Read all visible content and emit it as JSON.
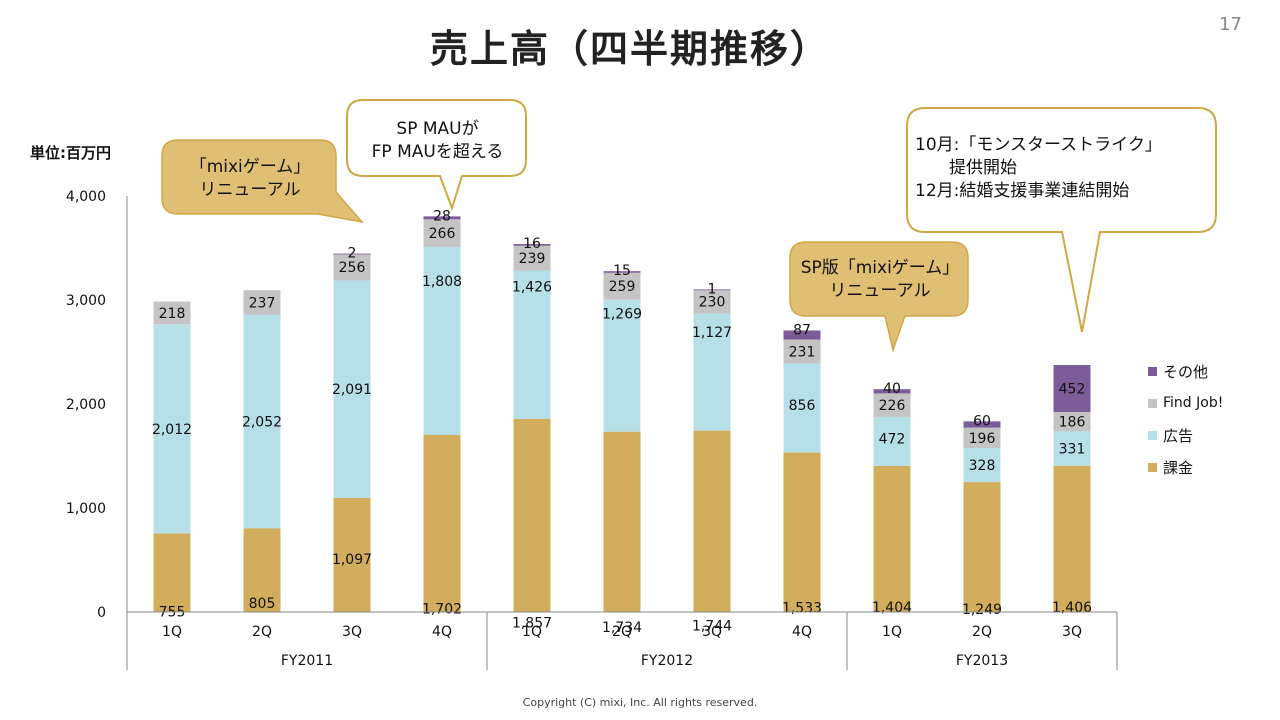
{
  "title": "売上高（四半期推移）",
  "page_number": "17",
  "unit_label": "単位:百万円",
  "copyright": "Copyright (C) mixi, Inc. All rights reserved.",
  "colors": {
    "kakin": "#d2ad5b",
    "koukoku": "#b7dfe8",
    "findjob": "#c4c4c4",
    "other": "#7b5c99",
    "callout_fill": "#dfbf73",
    "callout_border": "#cfa845",
    "axis": "#888888"
  },
  "callouts": [
    {
      "text": "「mixiゲーム」\nリニューアル"
    },
    {
      "text": "SP MAUが\nFP MAUを超える"
    },
    {
      "text": "SP版「mixiゲーム」\nリニューアル"
    },
    {
      "text": "10月:「モンスターストライク」\n　　提供開始\n12月:結婚支援事業連結開始"
    }
  ],
  "chart_data": {
    "type": "bar",
    "stacked": true,
    "title": "売上高（四半期推移）",
    "ylabel": "単位:百万円",
    "ylim": [
      0,
      4000
    ],
    "yticks": [
      "0",
      "1,000",
      "2,000",
      "3,000",
      "4,000"
    ],
    "categories": [
      "1Q",
      "2Q",
      "3Q",
      "4Q",
      "1Q",
      "2Q",
      "3Q",
      "4Q",
      "1Q",
      "2Q",
      "3Q"
    ],
    "groups": [
      {
        "label": "FY2011",
        "count": 4
      },
      {
        "label": "FY2012",
        "count": 4
      },
      {
        "label": "FY2013",
        "count": 3
      }
    ],
    "legend_position": "right",
    "series": [
      {
        "name": "課金",
        "key": "kakin",
        "values": [
          755,
          805,
          1097,
          1702,
          1857,
          1734,
          1744,
          1533,
          1404,
          1249,
          1406
        ],
        "labels": [
          "755",
          "805",
          "1,097",
          "1,702",
          "1,857",
          "1,734",
          "1,744",
          "1,533",
          "1,404",
          "1,249",
          "1,406"
        ]
      },
      {
        "name": "広告",
        "key": "koukoku",
        "values": [
          2012,
          2052,
          2091,
          1808,
          1426,
          1269,
          1127,
          856,
          472,
          328,
          331
        ],
        "labels": [
          "2,012",
          "2,052",
          "2,091",
          "1,808",
          "1,426",
          "1,269",
          "1,127",
          "856",
          "472",
          "328",
          "331"
        ]
      },
      {
        "name": "Find Job!",
        "key": "findjob",
        "values": [
          218,
          237,
          256,
          266,
          239,
          259,
          230,
          231,
          226,
          196,
          186
        ],
        "labels": [
          "218",
          "237",
          "256",
          "266",
          "239",
          "259",
          "230",
          "231",
          "226",
          "196",
          "186"
        ]
      },
      {
        "name": "その他",
        "key": "other",
        "values": [
          0,
          0,
          2,
          28,
          16,
          15,
          1,
          87,
          40,
          60,
          452
        ],
        "labels": [
          "",
          "",
          "2",
          "28",
          "16",
          "15",
          "1",
          "87",
          "40",
          "60",
          "452"
        ]
      }
    ],
    "legend_order": [
      "その他",
      "Find Job!",
      "広告",
      "課金"
    ]
  }
}
